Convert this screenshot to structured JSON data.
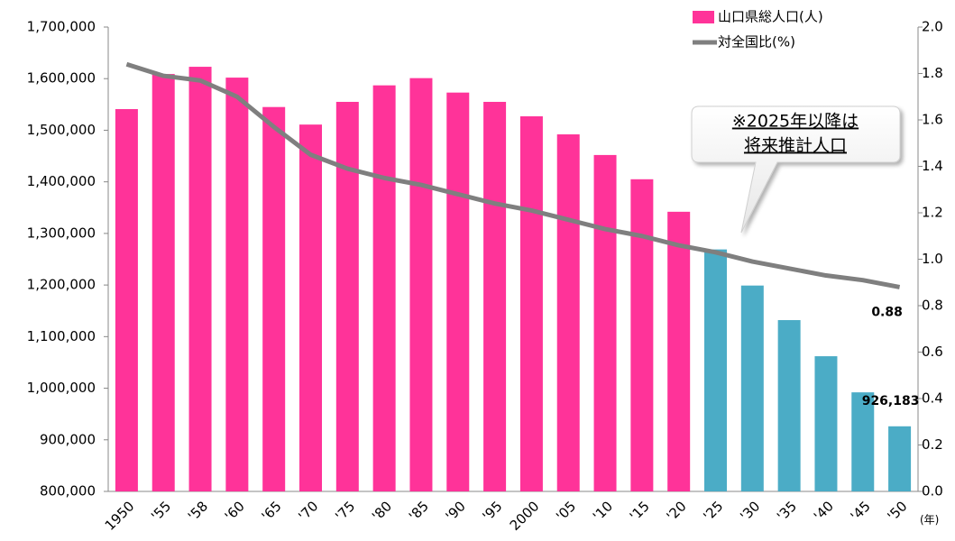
{
  "chart_data": {
    "type": "bar_line",
    "categories": [
      "1950",
      "'55",
      "'58",
      "'60",
      "'65",
      "'70",
      "'75",
      "'80",
      "'85",
      "'90",
      "'95",
      "2000",
      "'05",
      "'10",
      "'15",
      "'20",
      "'25",
      "'30",
      "'35",
      "'40",
      "'45",
      "'50"
    ],
    "x_unit": "(年)",
    "series": [
      {
        "name": "山口県総人口(人)",
        "type": "bar",
        "color": "#ff3399",
        "colors": [
          "#ff3399",
          "#ff3399",
          "#ff3399",
          "#ff3399",
          "#ff3399",
          "#ff3399",
          "#ff3399",
          "#ff3399",
          "#ff3399",
          "#ff3399",
          "#ff3399",
          "#ff3399",
          "#ff3399",
          "#ff3399",
          "#ff3399",
          "#ff3399",
          "#4bacc6",
          "#4bacc6",
          "#4bacc6",
          "#4bacc6",
          "#4bacc6",
          "#4bacc6"
        ],
        "values": [
          1541000,
          1609000,
          1623000,
          1602000,
          1545000,
          1511000,
          1555000,
          1587000,
          1601000,
          1573000,
          1555000,
          1527000,
          1492000,
          1452000,
          1405000,
          1342000,
          1269000,
          1199000,
          1132000,
          1062000,
          992000,
          926183
        ],
        "value_labels": [
          null,
          null,
          null,
          null,
          null,
          null,
          null,
          null,
          null,
          null,
          null,
          null,
          null,
          null,
          null,
          null,
          null,
          null,
          null,
          null,
          null,
          "926,183"
        ]
      },
      {
        "name": "対全国比(%)",
        "type": "line",
        "axis": "y2",
        "color": "#7f7f7f",
        "values": [
          1.84,
          1.79,
          1.77,
          1.7,
          1.57,
          1.45,
          1.39,
          1.35,
          1.32,
          1.28,
          1.24,
          1.21,
          1.17,
          1.13,
          1.1,
          1.06,
          1.03,
          0.99,
          0.96,
          0.93,
          0.91,
          0.88
        ]
      }
    ],
    "ylim": [
      800000,
      1700000
    ],
    "yticks": [
      {
        "value": 800000,
        "label": "800,000"
      },
      {
        "value": 900000,
        "label": "900,000"
      },
      {
        "value": 1000000,
        "label": "1,000,000"
      },
      {
        "value": 1100000,
        "label": "1,100,000"
      },
      {
        "value": 1200000,
        "label": "1,200,000"
      },
      {
        "value": 1300000,
        "label": "1,300,000"
      },
      {
        "value": 1400000,
        "label": "1,400,000"
      },
      {
        "value": 1500000,
        "label": "1,500,000"
      },
      {
        "value": 1600000,
        "label": "1,600,000"
      },
      {
        "value": 1700000,
        "label": "1,700,000"
      }
    ],
    "y2lim": [
      0,
      2
    ],
    "y2ticks": [
      {
        "value": 0,
        "label": "0.0"
      },
      0.2,
      0.4,
      0.6,
      0.8,
      {
        "value": 1,
        "label": "1.0"
      },
      1.2,
      1.4,
      1.6,
      1.8,
      {
        "value": 2,
        "label": "2.0"
      }
    ],
    "annotation": [
      "※2025年以降は",
      "将来推計人口"
    ],
    "legend": "top-right"
  }
}
